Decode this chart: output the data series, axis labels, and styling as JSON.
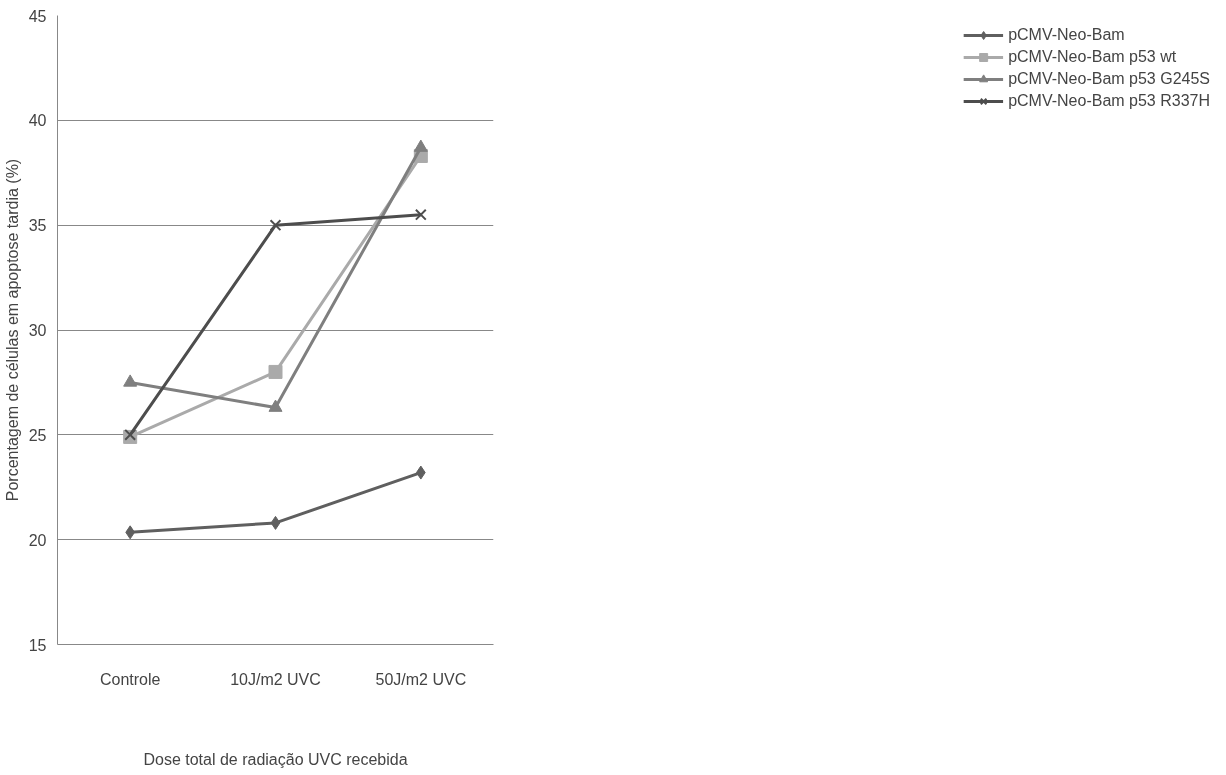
{
  "chart_data": {
    "type": "line",
    "xlabel": "Dose total de radiação UVC recebida",
    "ylabel": "Porcentagem de células em apoptose tardia (%)",
    "categories": [
      "Controle",
      "10J/m2 UVC",
      "50J/m2 UVC"
    ],
    "series": [
      {
        "name": "pCMV-Neo-Bam",
        "color": "#5f5f5f",
        "marker": "diamond",
        "values": [
          20.35,
          20.8,
          23.2
        ]
      },
      {
        "name": "pCMV-Neo-Bam p53 wt",
        "color": "#aaaaaa",
        "marker": "square",
        "values": [
          24.9,
          28.0,
          38.3
        ]
      },
      {
        "name": "pCMV-Neo-Bam p53 G245S",
        "color": "#7f7f7f",
        "marker": "triangle",
        "values": [
          27.5,
          26.3,
          38.7
        ]
      },
      {
        "name": "pCMV-Neo-Bam p53 R337H",
        "color": "#4d4d4d",
        "marker": "cross",
        "values": [
          25.0,
          35.0,
          35.5
        ]
      }
    ],
    "ylim": [
      15,
      45
    ],
    "yticks": [
      15,
      20,
      25,
      30,
      35,
      40,
      45
    ],
    "grid": "y",
    "legend": "right"
  }
}
